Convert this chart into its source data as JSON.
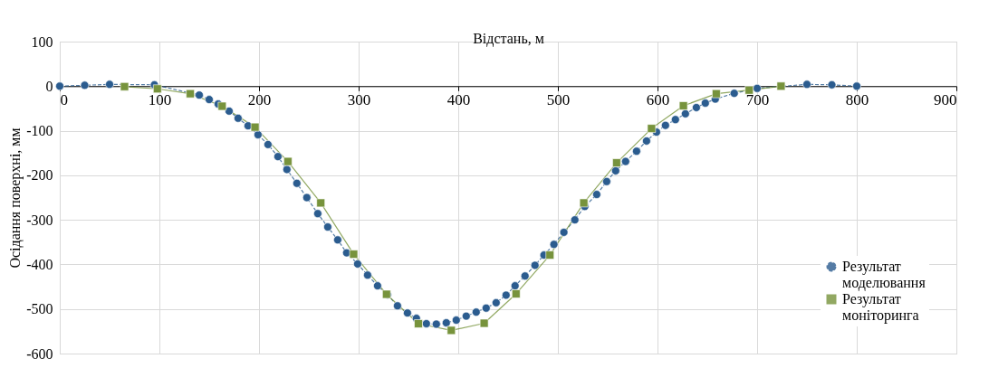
{
  "chart_data": {
    "type": "line",
    "xlabel": "Відстань, м",
    "ylabel": "Осідання поверхні, мм",
    "xlim": [
      0,
      900
    ],
    "xticks": [
      0,
      100,
      200,
      300,
      400,
      500,
      600,
      700,
      800,
      900
    ],
    "ylim": [
      -600,
      100
    ],
    "yticks": [
      -600,
      -500,
      -400,
      -300,
      -200,
      -100,
      0,
      100
    ],
    "grid": true,
    "legend": "right",
    "series": [
      {
        "name": "Результат моделювання",
        "color": "#2b5c8f",
        "marker": "circle",
        "line_style": "dashed",
        "x": [
          0,
          25,
          50,
          95,
          140,
          150,
          159,
          170,
          179,
          189,
          199,
          209,
          219,
          228,
          238,
          248,
          259,
          269,
          279,
          288,
          299,
          309,
          319,
          329,
          339,
          349,
          358,
          368,
          378,
          388,
          398,
          408,
          418,
          428,
          438,
          448,
          457,
          467,
          477,
          486,
          496,
          506,
          517,
          527,
          539,
          549,
          558,
          568,
          579,
          589,
          599,
          608,
          618,
          628,
          639,
          648,
          658,
          677,
          700,
          750,
          775,
          800
        ],
        "values": [
          0,
          2,
          4,
          3,
          -20,
          -30,
          -40,
          -56,
          -72,
          -89,
          -109,
          -131,
          -158,
          -187,
          -218,
          -250,
          -286,
          -316,
          -345,
          -374,
          -399,
          -424,
          -448,
          -468,
          -493,
          -509,
          -521,
          -533,
          -534,
          -531,
          -525,
          -516,
          -507,
          -498,
          -486,
          -469,
          -448,
          -426,
          -402,
          -379,
          -355,
          -328,
          -300,
          -270,
          -243,
          -214,
          -190,
          -169,
          -146,
          -123,
          -103,
          -88,
          -75,
          -62,
          -48,
          -38,
          -29,
          -16,
          -5,
          4,
          3,
          0
        ]
      },
      {
        "name": "Результат моніторинга",
        "color": "#77933c",
        "marker": "square",
        "line_style": "solid",
        "x": [
          65,
          98,
          131,
          163,
          196,
          229,
          262,
          295,
          328,
          360,
          393,
          426,
          458,
          492,
          526,
          559,
          594,
          626,
          659,
          692,
          724
        ],
        "values": [
          -1,
          -6,
          -17,
          -45,
          -92,
          -169,
          -262,
          -377,
          -467,
          -533,
          -548,
          -532,
          -466,
          -379,
          -262,
          -172,
          -95,
          -44,
          -17,
          -9,
          0
        ]
      }
    ]
  }
}
